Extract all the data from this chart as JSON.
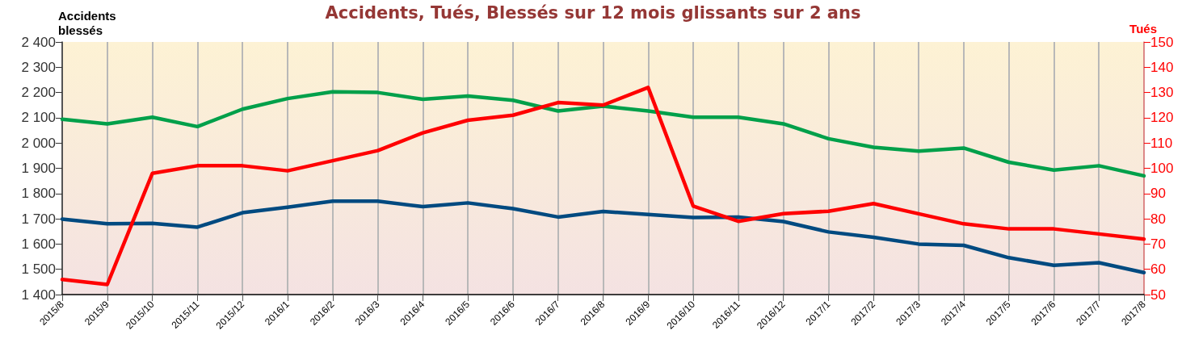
{
  "chart_data": {
    "type": "line",
    "title": "Accidents, Tués, Blessés sur 12 mois glissants sur 2 ans",
    "ylabel": "Accidents blessés",
    "y2label": "Tués",
    "categories": [
      "2015/8",
      "2015/9",
      "2015/10",
      "2015/11",
      "2015/12",
      "2016/1",
      "2016/2",
      "2016/3",
      "2016/4",
      "2016/5",
      "2016/6",
      "2016/7",
      "2016/8",
      "2016/9",
      "2016/10",
      "2016/11",
      "2016/12",
      "2017/1",
      "2017/2",
      "2017/3",
      "2017/4",
      "2017/5",
      "2017/6",
      "2017/7",
      "2017/8"
    ],
    "series": [
      {
        "color": "#004a80",
        "values": [
          1699,
          1680,
          1682,
          1667,
          1724,
          1746,
          1770,
          1770,
          1748,
          1763,
          1740,
          1707,
          1729,
          1717,
          1705,
          1707,
          1689,
          1648,
          1627,
          1600,
          1595,
          1546,
          1516,
          1526,
          1487
        ]
      },
      {
        "color": "#00a04a",
        "values": [
          2094,
          2076,
          2102,
          2065,
          2134,
          2176,
          2203,
          2200,
          2173,
          2186,
          2169,
          2127,
          2146,
          2127,
          2102,
          2102,
          2076,
          2017,
          1983,
          1968,
          1980,
          1924,
          1893,
          1910,
          1870
        ]
      },
      {
        "color": "#ff0000",
        "axis": "y2",
        "values": [
          56,
          54,
          98,
          101,
          101,
          99,
          103,
          107,
          114,
          119,
          121,
          126,
          125,
          132,
          85,
          79,
          82,
          83,
          86,
          82,
          78,
          76,
          76,
          74,
          72
        ]
      }
    ],
    "ylim": [
      1400,
      2400
    ],
    "yticks": [
      {
        "value": 1400,
        "label": "1 400"
      },
      {
        "value": 1500,
        "label": "1 500"
      },
      {
        "value": 1600,
        "label": "1 600"
      },
      {
        "value": 1700,
        "label": "1 700"
      },
      {
        "value": 1800,
        "label": "1 800"
      },
      {
        "value": 1900,
        "label": "1 900"
      },
      {
        "value": 2000,
        "label": "2 000"
      },
      {
        "value": 2100,
        "label": "2 100"
      },
      {
        "value": 2200,
        "label": "2 200"
      },
      {
        "value": 2300,
        "label": "2 300"
      },
      {
        "value": 2400,
        "label": "2 400"
      }
    ],
    "y2lim": [
      50,
      150
    ],
    "y2ticks": [
      50,
      60,
      70,
      80,
      90,
      100,
      110,
      120,
      130,
      140,
      150
    ],
    "grid": "x",
    "marker": "none",
    "line_style": "solid"
  }
}
